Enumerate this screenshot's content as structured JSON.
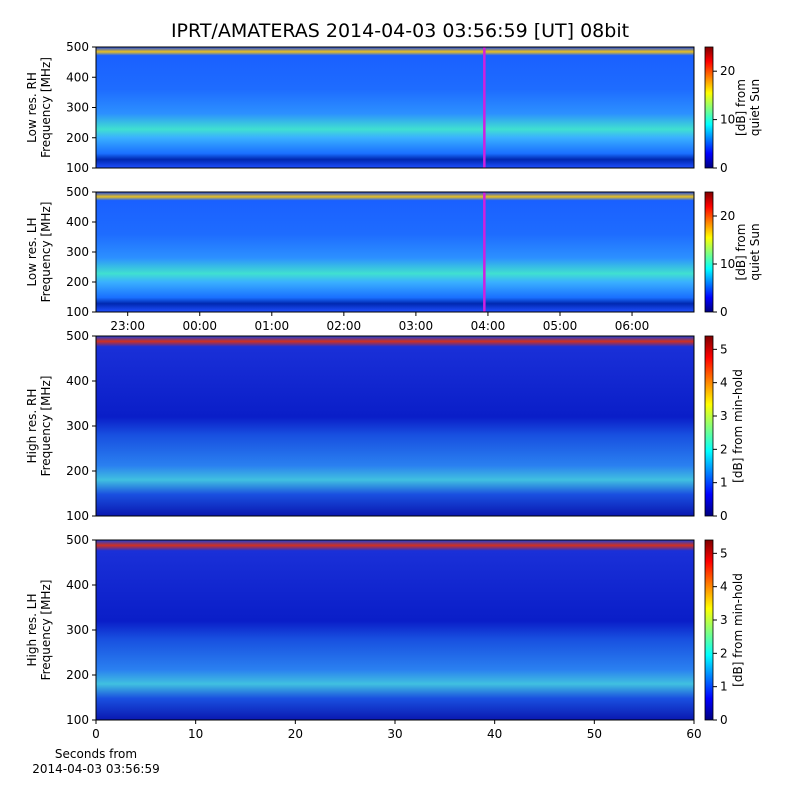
{
  "chart_data": [
    {
      "type": "heatmap",
      "title": "IPRT/AMATERAS 2014-04-03 03:56:59 [UT]   08bit",
      "ylabel": [
        "Low res. RH",
        "Frequency [MHz]"
      ],
      "ylim": [
        100,
        500
      ],
      "yticks": [
        100,
        200,
        300,
        400,
        500
      ],
      "xlim": [
        22.56,
        30.86
      ],
      "marker_x": 27.95,
      "marker_color": "#d020e0",
      "colormap": "jet",
      "colorbar": {
        "label": [
          "[dB] from",
          "quiet Sun"
        ],
        "lim": [
          0,
          25
        ],
        "ticks": [
          0,
          10,
          20
        ]
      }
    },
    {
      "type": "heatmap",
      "ylabel": [
        "Low res. LH",
        "Frequency [MHz]"
      ],
      "ylim": [
        100,
        500
      ],
      "yticks": [
        100,
        200,
        300,
        400,
        500
      ],
      "xlim": [
        22.56,
        30.86
      ],
      "xticks": [
        {
          "value": 23,
          "label": "23:00"
        },
        {
          "value": 24,
          "label": "00:00"
        },
        {
          "value": 25,
          "label": "01:00"
        },
        {
          "value": 26,
          "label": "02:00"
        },
        {
          "value": 27,
          "label": "03:00"
        },
        {
          "value": 28,
          "label": "04:00"
        },
        {
          "value": 29,
          "label": "05:00"
        },
        {
          "value": 30,
          "label": "06:00"
        }
      ],
      "marker_x": 27.95,
      "marker_color": "#d020e0",
      "colormap": "jet",
      "colorbar": {
        "label": [
          "[dB] from",
          "quiet Sun"
        ],
        "lim": [
          0,
          25
        ],
        "ticks": [
          0,
          10,
          20
        ]
      }
    },
    {
      "type": "heatmap",
      "ylabel": [
        "High res. RH",
        "Frequency [MHz]"
      ],
      "ylim": [
        100,
        500
      ],
      "yticks": [
        100,
        200,
        300,
        400,
        500
      ],
      "xlim": [
        0,
        60
      ],
      "colormap": "jet",
      "colorbar": {
        "label": [
          "[dB] from min-hold"
        ],
        "lim": [
          0,
          5.4
        ],
        "ticks": [
          0,
          1,
          2,
          3,
          4,
          5
        ]
      }
    },
    {
      "type": "heatmap",
      "ylabel": [
        "High res. LH",
        "Frequency [MHz]"
      ],
      "ylim": [
        100,
        500
      ],
      "yticks": [
        100,
        200,
        300,
        400,
        500
      ],
      "xlim": [
        0,
        60
      ],
      "xticks": [
        0,
        10,
        20,
        30,
        40,
        50,
        60
      ],
      "xlabel": [
        "Seconds from",
        "2014-04-03 03:56:59"
      ],
      "colormap": "jet",
      "colorbar": {
        "label": [
          "[dB] from min-hold"
        ],
        "lim": [
          0,
          5.4
        ],
        "ticks": [
          0,
          1,
          2,
          3,
          4,
          5
        ]
      }
    }
  ]
}
